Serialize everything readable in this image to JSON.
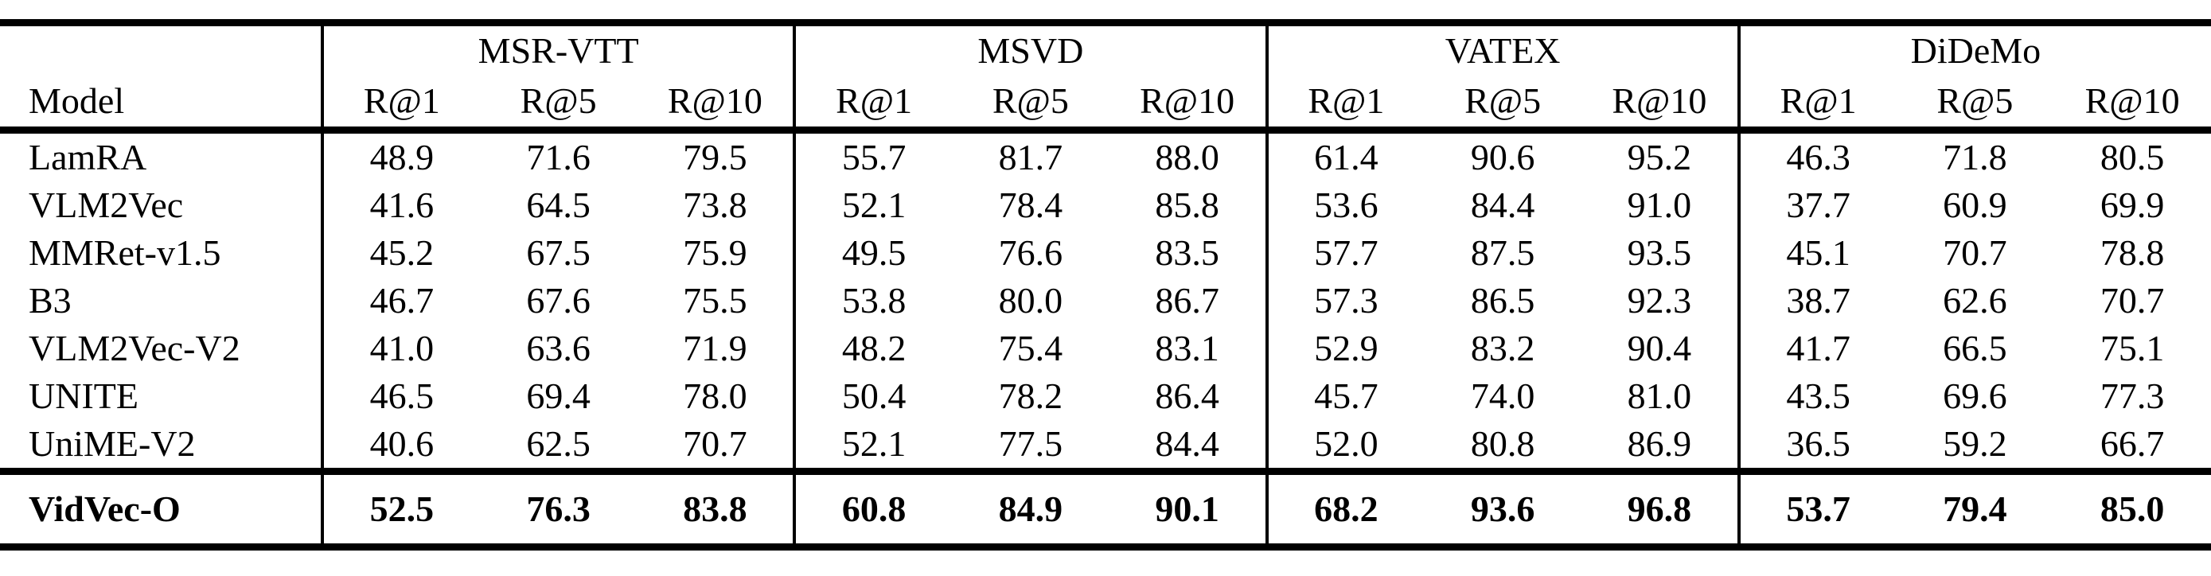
{
  "page": {
    "background": "#ffffff",
    "text_color": "#000000"
  },
  "table": {
    "model_header": "Model",
    "groups": [
      {
        "name": "MSR-VTT",
        "metrics": [
          "R@1",
          "R@5",
          "R@10"
        ]
      },
      {
        "name": "MSVD",
        "metrics": [
          "R@1",
          "R@5",
          "R@10"
        ]
      },
      {
        "name": "VATEX",
        "metrics": [
          "R@1",
          "R@5",
          "R@10"
        ]
      },
      {
        "name": "DiDeMo",
        "metrics": [
          "R@1",
          "R@5",
          "R@10"
        ]
      }
    ],
    "rows": [
      {
        "model": "LamRA",
        "bold": false,
        "values": [
          "48.9",
          "71.6",
          "79.5",
          "55.7",
          "81.7",
          "88.0",
          "61.4",
          "90.6",
          "95.2",
          "46.3",
          "71.8",
          "80.5"
        ]
      },
      {
        "model": "VLM2Vec",
        "bold": false,
        "values": [
          "41.6",
          "64.5",
          "73.8",
          "52.1",
          "78.4",
          "85.8",
          "53.6",
          "84.4",
          "91.0",
          "37.7",
          "60.9",
          "69.9"
        ]
      },
      {
        "model": "MMRet-v1.5",
        "bold": false,
        "values": [
          "45.2",
          "67.5",
          "75.9",
          "49.5",
          "76.6",
          "83.5",
          "57.7",
          "87.5",
          "93.5",
          "45.1",
          "70.7",
          "78.8"
        ]
      },
      {
        "model": "B3",
        "bold": false,
        "values": [
          "46.7",
          "67.6",
          "75.5",
          "53.8",
          "80.0",
          "86.7",
          "57.3",
          "86.5",
          "92.3",
          "38.7",
          "62.6",
          "70.7"
        ]
      },
      {
        "model": "VLM2Vec-V2",
        "bold": false,
        "values": [
          "41.0",
          "63.6",
          "71.9",
          "48.2",
          "75.4",
          "83.1",
          "52.9",
          "83.2",
          "90.4",
          "41.7",
          "66.5",
          "75.1"
        ]
      },
      {
        "model": "UNITE",
        "bold": false,
        "values": [
          "46.5",
          "69.4",
          "78.0",
          "50.4",
          "78.2",
          "86.4",
          "45.7",
          "74.0",
          "81.0",
          "43.5",
          "69.6",
          "77.3"
        ]
      },
      {
        "model": "UniME-V2",
        "bold": false,
        "values": [
          "40.6",
          "62.5",
          "70.7",
          "52.1",
          "77.5",
          "84.4",
          "52.0",
          "80.8",
          "86.9",
          "36.5",
          "59.2",
          "66.7"
        ]
      },
      {
        "model": "VidVec-O",
        "bold": true,
        "values": [
          "52.5",
          "76.3",
          "83.8",
          "60.8",
          "84.9",
          "90.1",
          "68.2",
          "93.6",
          "96.8",
          "53.7",
          "79.4",
          "85.0"
        ]
      }
    ]
  }
}
